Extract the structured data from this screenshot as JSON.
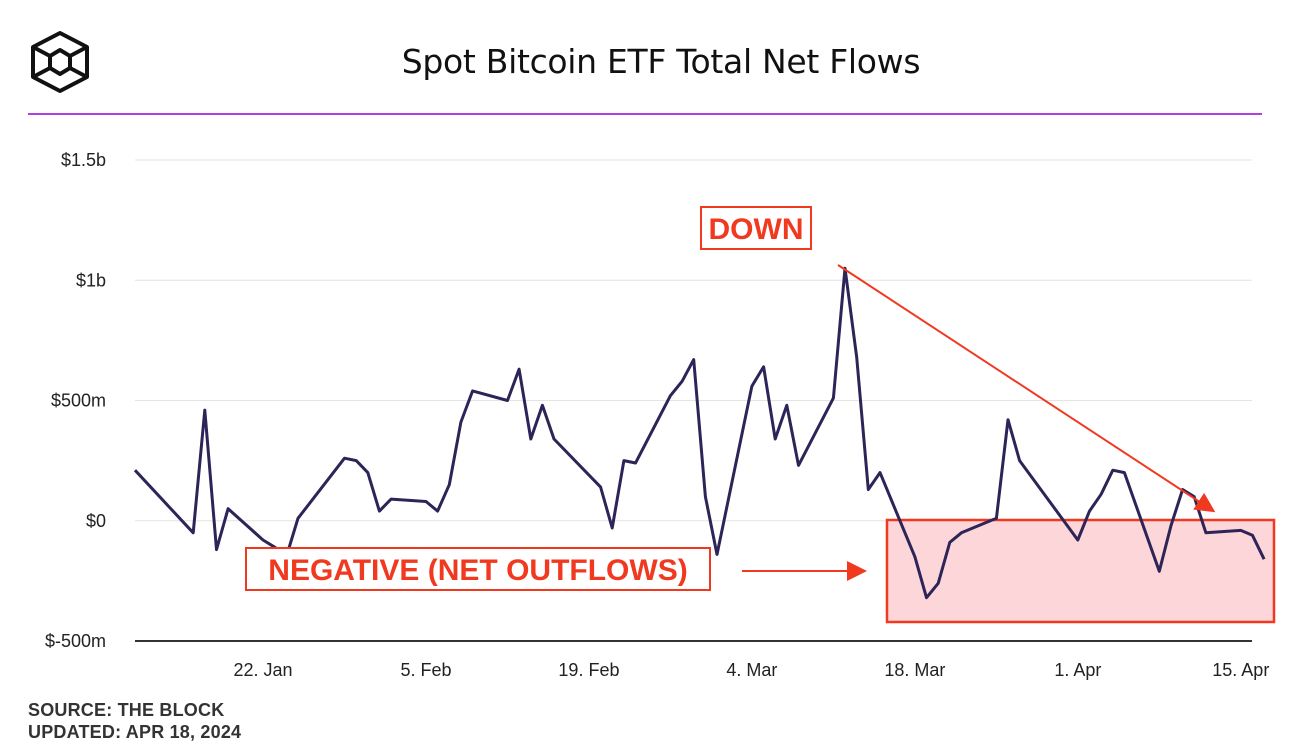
{
  "header": {
    "title": "Spot Bitcoin ETF Total Net Flows",
    "logo_icon": "the-block-cube-logo-icon",
    "rule_color": "#b33fe0"
  },
  "footer": {
    "source": "SOURCE: THE BLOCK",
    "updated": "UPDATED: APR 18, 2024"
  },
  "annotations": {
    "down_label": "DOWN",
    "negative_label": "NEGATIVE (NET OUTFLOWS)",
    "color": "#f0391f",
    "highlight_fill": "#fcd6d8"
  },
  "chart_data": {
    "type": "line",
    "title": "Spot Bitcoin ETF Total Net Flows",
    "xlabel": "",
    "ylabel": "",
    "ylim": [
      -500,
      1500
    ],
    "y_unit": "millions USD",
    "y_ticks": [
      {
        "value": 1500,
        "label": "$1.5b"
      },
      {
        "value": 1000,
        "label": "$1b"
      },
      {
        "value": 500,
        "label": "$500m"
      },
      {
        "value": 0,
        "label": "$0"
      },
      {
        "value": -500,
        "label": "$-500m"
      }
    ],
    "x_ticks": [
      "22. Jan",
      "5. Feb",
      "19. Feb",
      "4. Mar",
      "18. Mar",
      "1. Apr",
      "15. Apr"
    ],
    "grid": true,
    "line_color": "#2d2457",
    "series": [
      {
        "values": [
          {
            "x": "2024-01-11",
            "y": 210
          },
          {
            "x": "2024-01-16",
            "y": -50
          },
          {
            "x": "2024-01-17",
            "y": 460
          },
          {
            "x": "2024-01-18",
            "y": -120
          },
          {
            "x": "2024-01-19",
            "y": 50
          },
          {
            "x": "2024-01-22",
            "y": -80
          },
          {
            "x": "2024-01-23",
            "y": -110
          },
          {
            "x": "2024-01-24",
            "y": -150
          },
          {
            "x": "2024-01-25",
            "y": 10
          },
          {
            "x": "2024-01-29",
            "y": 260
          },
          {
            "x": "2024-01-30",
            "y": 250
          },
          {
            "x": "2024-01-31",
            "y": 200
          },
          {
            "x": "2024-02-01",
            "y": 40
          },
          {
            "x": "2024-02-02",
            "y": 90
          },
          {
            "x": "2024-02-05",
            "y": 80
          },
          {
            "x": "2024-02-06",
            "y": 40
          },
          {
            "x": "2024-02-07",
            "y": 150
          },
          {
            "x": "2024-02-08",
            "y": 410
          },
          {
            "x": "2024-02-09",
            "y": 540
          },
          {
            "x": "2024-02-12",
            "y": 500
          },
          {
            "x": "2024-02-13",
            "y": 630
          },
          {
            "x": "2024-02-14",
            "y": 340
          },
          {
            "x": "2024-02-15",
            "y": 480
          },
          {
            "x": "2024-02-16",
            "y": 340
          },
          {
            "x": "2024-02-20",
            "y": 140
          },
          {
            "x": "2024-02-21",
            "y": -30
          },
          {
            "x": "2024-02-22",
            "y": 250
          },
          {
            "x": "2024-02-23",
            "y": 240
          },
          {
            "x": "2024-02-26",
            "y": 520
          },
          {
            "x": "2024-02-27",
            "y": 580
          },
          {
            "x": "2024-02-28",
            "y": 670
          },
          {
            "x": "2024-02-29",
            "y": 100
          },
          {
            "x": "2024-03-01",
            "y": -140
          },
          {
            "x": "2024-03-04",
            "y": 560
          },
          {
            "x": "2024-03-05",
            "y": 640
          },
          {
            "x": "2024-03-06",
            "y": 340
          },
          {
            "x": "2024-03-07",
            "y": 480
          },
          {
            "x": "2024-03-08",
            "y": 230
          },
          {
            "x": "2024-03-11",
            "y": 510
          },
          {
            "x": "2024-03-12",
            "y": 1050
          },
          {
            "x": "2024-03-13",
            "y": 680
          },
          {
            "x": "2024-03-14",
            "y": 130
          },
          {
            "x": "2024-03-15",
            "y": 200
          },
          {
            "x": "2024-03-18",
            "y": -150
          },
          {
            "x": "2024-03-19",
            "y": -320
          },
          {
            "x": "2024-03-20",
            "y": -260
          },
          {
            "x": "2024-03-21",
            "y": -90
          },
          {
            "x": "2024-03-22",
            "y": -50
          },
          {
            "x": "2024-03-25",
            "y": 10
          },
          {
            "x": "2024-03-26",
            "y": 420
          },
          {
            "x": "2024-03-27",
            "y": 250
          },
          {
            "x": "2024-04-01",
            "y": -80
          },
          {
            "x": "2024-04-02",
            "y": 40
          },
          {
            "x": "2024-04-03",
            "y": 110
          },
          {
            "x": "2024-04-04",
            "y": 210
          },
          {
            "x": "2024-04-05",
            "y": 200
          },
          {
            "x": "2024-04-08",
            "y": -210
          },
          {
            "x": "2024-04-09",
            "y": -20
          },
          {
            "x": "2024-04-10",
            "y": 130
          },
          {
            "x": "2024-04-11",
            "y": 100
          },
          {
            "x": "2024-04-12",
            "y": -50
          },
          {
            "x": "2024-04-15",
            "y": -40
          },
          {
            "x": "2024-04-16",
            "y": -60
          },
          {
            "x": "2024-04-17",
            "y": -160
          }
        ]
      }
    ]
  }
}
